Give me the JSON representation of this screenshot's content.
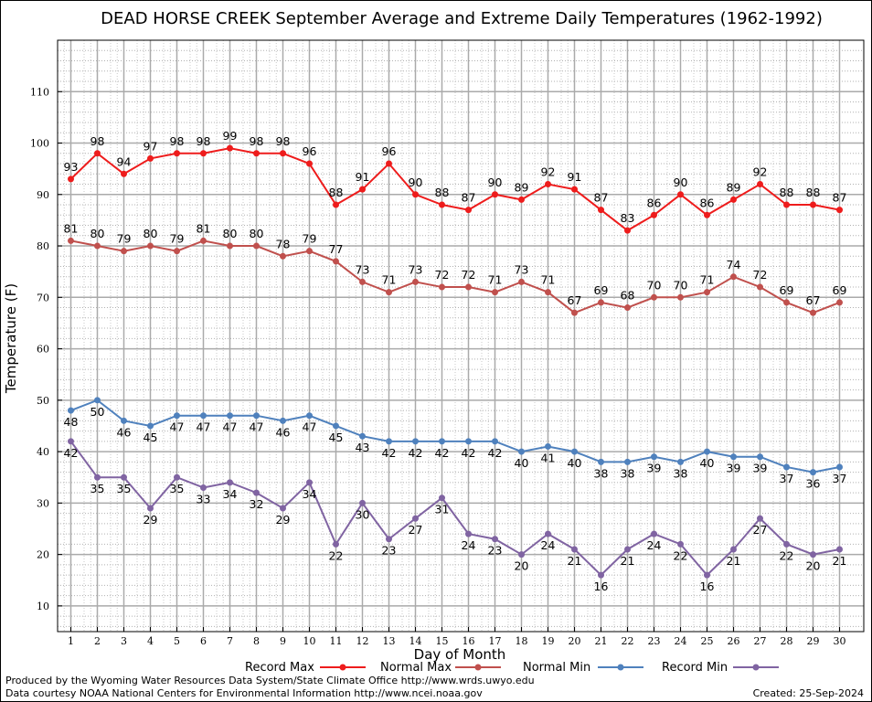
{
  "chart_data": {
    "type": "line",
    "title": "DEAD HORSE CREEK September Average and Extreme Daily Temperatures (1962-1992)",
    "xlabel": "Day of Month",
    "ylabel": "Temperature (F)",
    "xlim": [
      1,
      30
    ],
    "ylim": [
      5,
      120
    ],
    "yticks": [
      10,
      20,
      30,
      40,
      50,
      60,
      70,
      80,
      90,
      100,
      110
    ],
    "x": [
      1,
      2,
      3,
      4,
      5,
      6,
      7,
      8,
      9,
      10,
      11,
      12,
      13,
      14,
      15,
      16,
      17,
      18,
      19,
      20,
      21,
      22,
      23,
      24,
      25,
      26,
      27,
      28,
      29,
      30
    ],
    "grid": true,
    "legend_position": "bottom",
    "series": [
      {
        "name": "Record Max",
        "color": "#ee1c1c",
        "values": [
          93,
          98,
          94,
          97,
          98,
          98,
          99,
          98,
          98,
          96,
          88,
          91,
          96,
          90,
          88,
          87,
          90,
          89,
          92,
          91,
          87,
          83,
          86,
          90,
          86,
          89,
          92,
          88,
          88,
          87
        ],
        "label_position": "above"
      },
      {
        "name": "Normal Max",
        "color": "#c0504d",
        "values": [
          81,
          80,
          79,
          80,
          79,
          81,
          80,
          80,
          78,
          79,
          77,
          73,
          71,
          73,
          72,
          72,
          71,
          73,
          71,
          67,
          69,
          68,
          70,
          70,
          71,
          74,
          72,
          69,
          67,
          69
        ],
        "label_position": "above"
      },
      {
        "name": "Normal Min",
        "color": "#4f81bd",
        "values": [
          48,
          50,
          46,
          45,
          47,
          47,
          47,
          47,
          46,
          47,
          45,
          43,
          42,
          42,
          42,
          42,
          42,
          40,
          41,
          40,
          38,
          38,
          39,
          38,
          40,
          39,
          39,
          37,
          36,
          37
        ],
        "label_position": "below"
      },
      {
        "name": "Record Min",
        "color": "#8064a2",
        "values": [
          42,
          35,
          35,
          29,
          35,
          33,
          34,
          32,
          29,
          34,
          22,
          30,
          23,
          27,
          31,
          24,
          23,
          20,
          24,
          21,
          16,
          21,
          24,
          22,
          16,
          21,
          27,
          22,
          20,
          21
        ],
        "label_position": "below"
      }
    ]
  },
  "footer": {
    "credit_line1": "Produced by the Wyoming Water Resources Data System/State Climate Office http://www.wrds.uwyo.edu",
    "credit_line2": "Data courtesy NOAA National Centers for Environmental Information http://www.ncei.noaa.gov",
    "created": "Created:  25-Sep-2024"
  }
}
